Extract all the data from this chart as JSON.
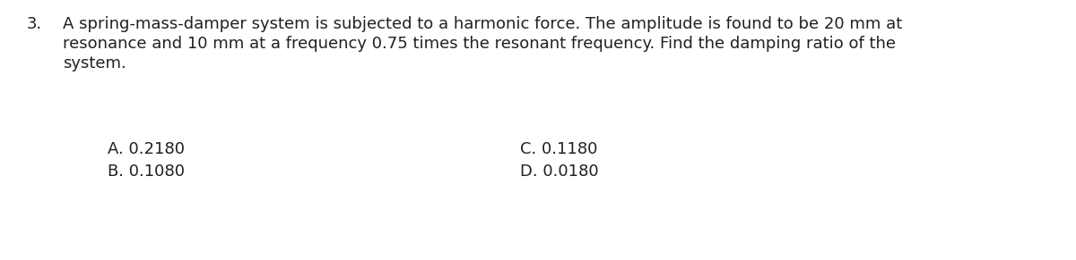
{
  "question_number": "3.",
  "question_text": "A spring-mass-damper system is subjected to a harmonic force. The amplitude is found to be 20 mm at\nresonance and 10 mm at a frequency 0.75 times the resonant frequency. Find the damping ratio of the\nsystem.",
  "option_A": "A. 0.2180",
  "option_B": "B. 0.1080",
  "option_C": "C. 0.1180",
  "option_D": "D. 0.0180",
  "background_color": "#ffffff",
  "text_color": "#231f20",
  "font_size_question": 13.0,
  "font_size_options": 13.0,
  "fig_width": 12.0,
  "fig_height": 2.91,
  "dpi": 100
}
